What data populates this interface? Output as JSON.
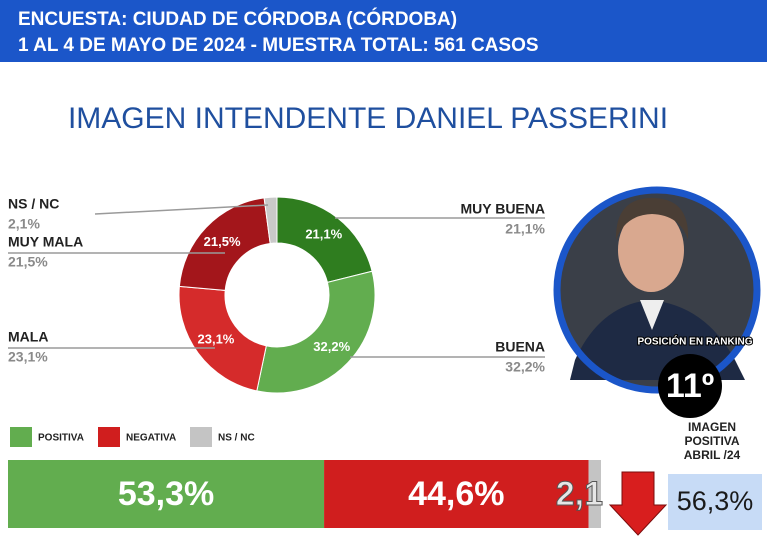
{
  "header": {
    "line1": "ENCUESTA: CIUDAD DE CÓRDOBA (CÓRDOBA)",
    "line2": "1 AL 4 DE MAYO DE 2024 - MUESTRA TOTAL: 561 CASOS"
  },
  "chart_data": [
    {
      "type": "donut",
      "title": "IMAGEN INTENDENTE  DANIEL PASSERINI",
      "categories": [
        "MUY BUENA",
        "BUENA",
        "MALA",
        "MUY MALA",
        "NS / NC"
      ],
      "values": [
        21.1,
        32.2,
        23.1,
        21.5,
        2.1
      ],
      "value_labels": [
        "21,1%",
        "32,2%",
        "23,1%",
        "21,5%",
        "2,1%"
      ],
      "colors": [
        "#2f7d1f",
        "#62ad4f",
        "#d52b2b",
        "#a3161b",
        "#c9c9c9"
      ]
    },
    {
      "type": "stacked_bar",
      "series": [
        {
          "name": "POSITIVA",
          "color": "#62ad4f",
          "values": [
            53.3
          ],
          "value_labels": [
            "53,3%"
          ]
        },
        {
          "name": "NEGATIVA",
          "color": "#d01e1e",
          "values": [
            44.6
          ],
          "value_labels": [
            "44,6%"
          ]
        },
        {
          "name": "NS / NC",
          "color": "#c4c4c4",
          "values": [
            2.1
          ],
          "value_labels": [
            "2,1"
          ]
        }
      ],
      "xlim": [
        0,
        100
      ]
    }
  ],
  "ranking": {
    "label": "POSICIÓN EN RANKING",
    "position": "11º",
    "caption": [
      "IMAGEN",
      "POSITIVA",
      "ABRIL /24"
    ],
    "previous": "56,3%"
  }
}
